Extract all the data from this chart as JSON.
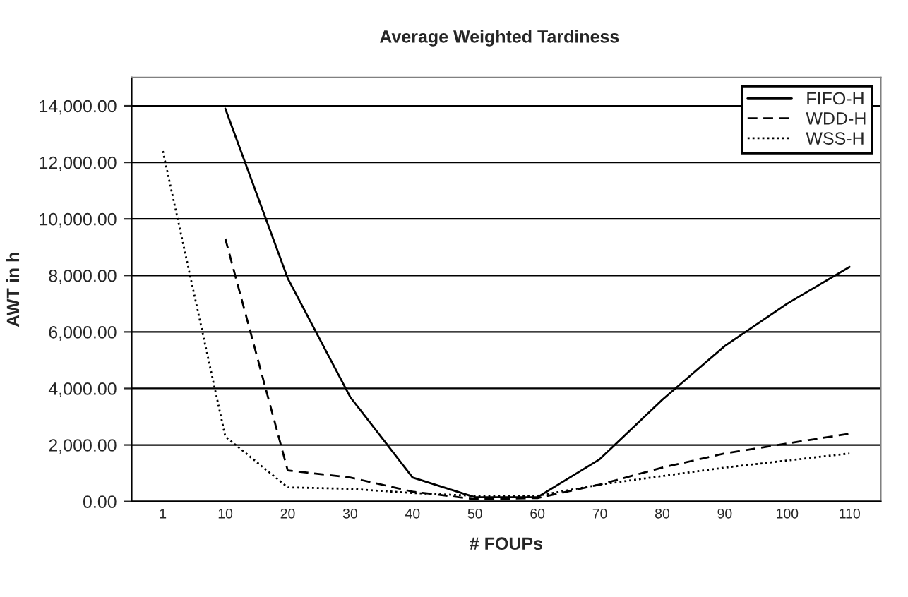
{
  "chart_data": {
    "type": "line",
    "title": "Average Weighted Tardiness",
    "xlabel": "# FOUPs",
    "ylabel": "AWT in h",
    "categories": [
      "1",
      "10",
      "20",
      "30",
      "40",
      "50",
      "60",
      "70",
      "80",
      "90",
      "100",
      "110"
    ],
    "series": [
      {
        "name": "FIFO-H",
        "color": "#000000",
        "line_style": "solid",
        "values": [
          null,
          13900,
          7900,
          3700,
          850,
          150,
          150,
          1500,
          3600,
          5500,
          7000,
          8300
        ]
      },
      {
        "name": "WDD-H",
        "color": "#000000",
        "line_style": "dashed",
        "values": [
          null,
          9300,
          1100,
          850,
          350,
          80,
          120,
          600,
          1200,
          1700,
          2050,
          2400
        ]
      },
      {
        "name": "WSS-H",
        "color": "#000000",
        "line_style": "dotted",
        "values": [
          12400,
          2300,
          500,
          450,
          300,
          200,
          200,
          600,
          900,
          1200,
          1450,
          1700
        ]
      }
    ],
    "ylim": [
      0,
      15000
    ],
    "yticks": [
      {
        "value": 0,
        "label": "0.00"
      },
      {
        "value": 2000,
        "label": "2,000.00"
      },
      {
        "value": 4000,
        "label": "4,000.00"
      },
      {
        "value": 6000,
        "label": "6,000.00"
      },
      {
        "value": 8000,
        "label": "8,000.00"
      },
      {
        "value": 10000,
        "label": "10,000.00"
      },
      {
        "value": 12000,
        "label": "12,000.00"
      },
      {
        "value": 14000,
        "label": "14,000.00"
      }
    ],
    "grid": "y",
    "legend": "top right"
  }
}
